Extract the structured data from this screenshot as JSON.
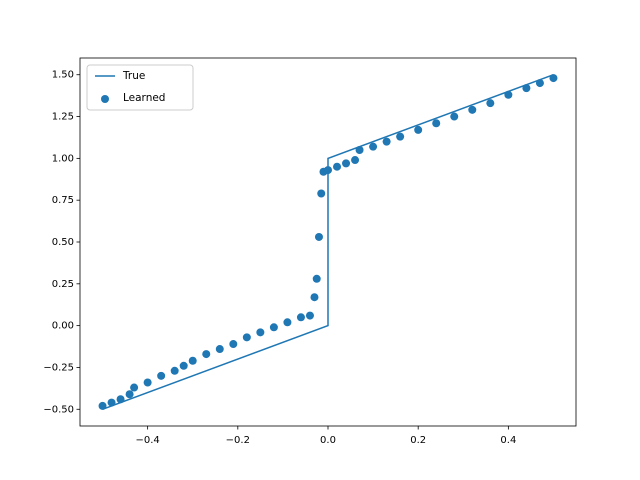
{
  "chart_data": {
    "type": "line-scatter",
    "series": [
      {
        "name": "True",
        "type": "line",
        "color": "#1f77b4",
        "x": [
          -0.5,
          0,
          0,
          0.5
        ],
        "values": [
          -0.5,
          0,
          1,
          1.5
        ]
      },
      {
        "name": "Learned",
        "type": "scatter",
        "color": "#1f77b4",
        "x": [
          -0.5,
          -0.48,
          -0.46,
          -0.44,
          -0.43,
          -0.4,
          -0.37,
          -0.34,
          -0.32,
          -0.3,
          -0.27,
          -0.24,
          -0.21,
          -0.18,
          -0.15,
          -0.12,
          -0.09,
          -0.06,
          -0.04,
          -0.03,
          -0.025,
          -0.02,
          -0.015,
          -0.01,
          0.0,
          0.02,
          0.04,
          0.06,
          0.07,
          0.1,
          0.13,
          0.16,
          0.2,
          0.24,
          0.28,
          0.32,
          0.36,
          0.4,
          0.44,
          0.47,
          0.5
        ],
        "values": [
          -0.48,
          -0.46,
          -0.44,
          -0.41,
          -0.37,
          -0.34,
          -0.3,
          -0.27,
          -0.24,
          -0.21,
          -0.17,
          -0.14,
          -0.11,
          -0.07,
          -0.04,
          -0.01,
          0.02,
          0.05,
          0.06,
          0.17,
          0.28,
          0.53,
          0.79,
          0.92,
          0.93,
          0.95,
          0.97,
          0.99,
          1.05,
          1.07,
          1.1,
          1.13,
          1.17,
          1.21,
          1.25,
          1.29,
          1.33,
          1.38,
          1.42,
          1.45,
          1.48
        ]
      }
    ],
    "xlim": [
      -0.55,
      0.55
    ],
    "ylim": [
      -0.6,
      1.6
    ],
    "xticks": [
      {
        "value": -0.4,
        "label": "−0.4"
      },
      {
        "value": -0.2,
        "label": "−0.2"
      },
      {
        "value": 0,
        "label": "0.0"
      },
      0.2,
      0.4
    ],
    "yticks": [
      {
        "value": -0.5,
        "label": "−0.50"
      },
      {
        "value": -0.25,
        "label": "−0.25"
      },
      {
        "value": 0,
        "label": "0.00"
      },
      0.25,
      {
        "value": 0.5,
        "label": "0.50"
      },
      0.75,
      {
        "value": 1,
        "label": "1.00"
      },
      1.25,
      {
        "value": 1.5,
        "label": "1.50"
      }
    ],
    "legend": "upper left",
    "grid": false
  }
}
